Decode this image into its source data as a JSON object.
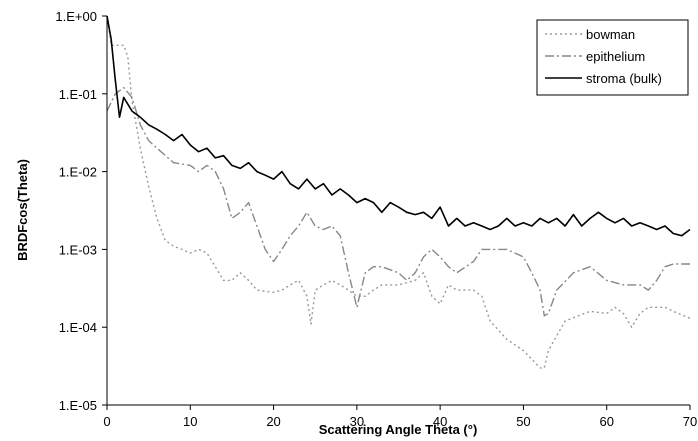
{
  "chart_data": {
    "type": "line",
    "title": "",
    "xlabel": "Scattering Angle Theta (°)",
    "ylabel": "BRDFcos(Theta)",
    "xlim": [
      0,
      70
    ],
    "ylim": [
      1e-05,
      1
    ],
    "y_scale": "log",
    "grid": false,
    "legend_position": "top-right",
    "x_ticks": [
      0,
      10,
      20,
      30,
      40,
      50,
      60,
      70
    ],
    "x_tick_labels": [
      "0",
      "10",
      "20",
      "30",
      "40",
      "50",
      "60",
      "70"
    ],
    "y_ticks": [
      1,
      0.1,
      0.01,
      0.001,
      0.0001,
      1e-05
    ],
    "y_tick_labels": [
      "1.E+00",
      "1.E-01",
      "1.E-02",
      "1.E-03",
      "1.E-04",
      "1.E-05"
    ],
    "series": [
      {
        "name": "bowman",
        "color": "#999999",
        "dash": "dotted",
        "x": [
          0,
          0.5,
          1,
          2,
          2.5,
          3,
          3.5,
          4,
          5,
          6,
          7,
          8,
          9,
          10,
          11,
          12,
          13,
          14,
          15,
          16,
          17,
          18,
          20,
          21,
          22,
          23,
          24,
          24.5,
          25,
          26,
          27,
          28,
          29,
          30,
          31,
          32,
          33,
          35,
          37,
          38,
          39,
          40,
          41,
          42,
          44,
          45,
          46,
          48,
          50,
          52,
          52.5,
          53,
          55,
          58,
          60,
          61,
          62,
          63,
          64,
          65,
          66,
          67,
          68,
          70
        ],
        "y": [
          1,
          0.42,
          0.42,
          0.42,
          0.3,
          0.08,
          0.04,
          0.02,
          0.0065,
          0.0025,
          0.0013,
          0.0011,
          0.001,
          0.0009,
          0.001,
          0.0009,
          0.0006,
          0.0004,
          0.0004,
          0.0005,
          0.0004,
          0.0003,
          0.00028,
          0.0003,
          0.00035,
          0.0004,
          0.00025,
          0.00011,
          0.0003,
          0.00035,
          0.0004,
          0.00035,
          0.0003,
          0.00025,
          0.00025,
          0.0003,
          0.00035,
          0.00035,
          0.0004,
          0.0005,
          0.00025,
          0.0002,
          0.00035,
          0.0003,
          0.0003,
          0.00025,
          0.00012,
          7e-05,
          5e-05,
          3e-05,
          3e-05,
          5e-05,
          0.00012,
          0.00016,
          0.00015,
          0.00018,
          0.00015,
          0.0001,
          0.00015,
          0.00018,
          0.00018,
          0.00018,
          0.00016,
          0.00013
        ]
      },
      {
        "name": "epithelium",
        "color": "#888888",
        "dash": "dash-dot",
        "x": [
          0,
          1,
          2,
          3,
          4,
          5,
          6,
          8,
          10,
          11,
          12,
          13,
          14,
          15,
          16,
          17,
          18,
          19,
          20,
          21,
          22,
          23,
          24,
          25,
          26,
          27,
          28,
          29,
          30,
          31,
          32,
          33,
          35,
          36,
          37,
          38,
          39,
          40,
          41,
          42,
          44,
          45,
          46,
          48,
          50,
          51,
          52,
          52.5,
          53,
          54,
          56,
          58,
          60,
          62,
          64,
          65,
          66,
          67,
          68,
          70
        ],
        "y": [
          0.06,
          0.1,
          0.12,
          0.09,
          0.04,
          0.025,
          0.02,
          0.013,
          0.012,
          0.01,
          0.012,
          0.01,
          0.006,
          0.0025,
          0.003,
          0.004,
          0.002,
          0.001,
          0.0007,
          0.001,
          0.0015,
          0.002,
          0.003,
          0.002,
          0.0018,
          0.002,
          0.0015,
          0.0005,
          0.00018,
          0.0005,
          0.0006,
          0.0006,
          0.0005,
          0.0004,
          0.0005,
          0.0008,
          0.001,
          0.0008,
          0.0006,
          0.0005,
          0.0007,
          0.001,
          0.001,
          0.001,
          0.0008,
          0.0005,
          0.0003,
          0.00014,
          0.00015,
          0.0003,
          0.0005,
          0.0006,
          0.0004,
          0.00035,
          0.00035,
          0.0003,
          0.0004,
          0.0006,
          0.00065,
          0.00065
        ]
      },
      {
        "name": "stroma (bulk)",
        "color": "#000000",
        "dash": "solid",
        "x": [
          0,
          0.5,
          1,
          1.5,
          2,
          3,
          4,
          5,
          6,
          7,
          8,
          9,
          10,
          11,
          12,
          13,
          14,
          15,
          16,
          17,
          18,
          19,
          20,
          21,
          22,
          23,
          24,
          25,
          26,
          27,
          28,
          29,
          30,
          31,
          32,
          33,
          34,
          35,
          36,
          37,
          38,
          39,
          40,
          41,
          42,
          43,
          44,
          45,
          46,
          47,
          48,
          49,
          50,
          51,
          52,
          53,
          54,
          55,
          56,
          57,
          58,
          59,
          60,
          61,
          62,
          63,
          64,
          65,
          66,
          67,
          68,
          69,
          70
        ],
        "y": [
          1,
          0.5,
          0.15,
          0.05,
          0.09,
          0.06,
          0.05,
          0.04,
          0.035,
          0.03,
          0.025,
          0.03,
          0.022,
          0.018,
          0.02,
          0.015,
          0.016,
          0.012,
          0.011,
          0.013,
          0.01,
          0.009,
          0.008,
          0.01,
          0.007,
          0.006,
          0.008,
          0.006,
          0.007,
          0.005,
          0.006,
          0.005,
          0.004,
          0.0045,
          0.004,
          0.003,
          0.004,
          0.0035,
          0.003,
          0.0028,
          0.003,
          0.0025,
          0.0035,
          0.002,
          0.0025,
          0.002,
          0.0022,
          0.002,
          0.0018,
          0.002,
          0.0025,
          0.002,
          0.0022,
          0.002,
          0.0025,
          0.0022,
          0.0025,
          0.002,
          0.0028,
          0.002,
          0.0025,
          0.003,
          0.0025,
          0.0022,
          0.0025,
          0.002,
          0.0022,
          0.002,
          0.0018,
          0.002,
          0.0016,
          0.0015,
          0.0018
        ]
      }
    ]
  }
}
